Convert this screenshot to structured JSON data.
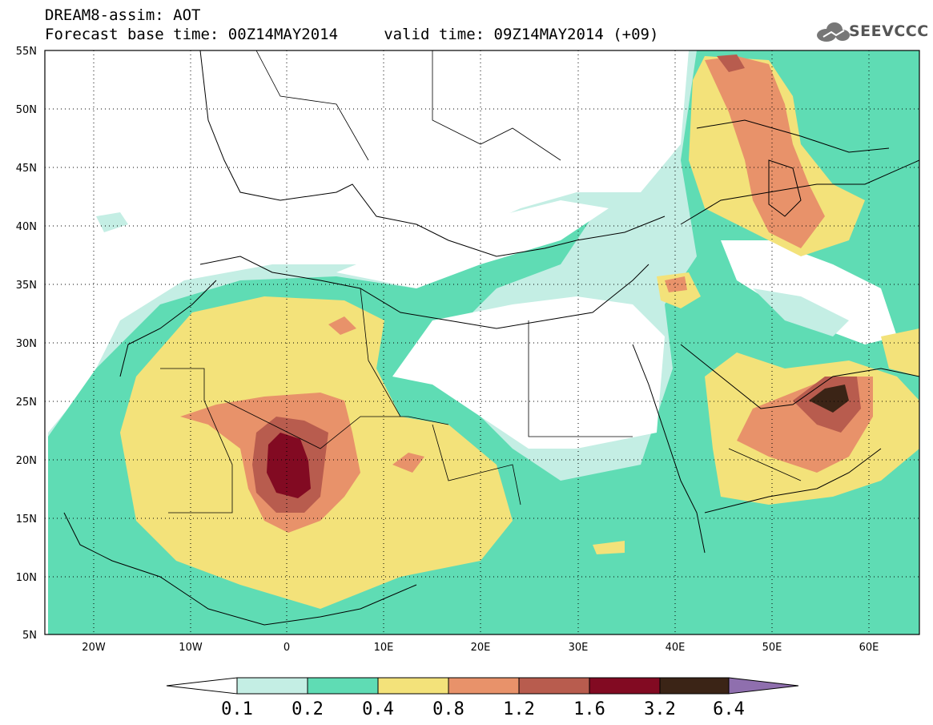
{
  "header": {
    "title_line1": "DREAM8-assim: AOT",
    "title_line2": "Forecast base time: 00Z14MAY2014     valid time: 09Z14MAY2014 (+09)",
    "logo_text": "SEEVCCC"
  },
  "map": {
    "projection": "lat-lon",
    "lon_range": [
      -25,
      65
    ],
    "lat_range": [
      5,
      55
    ],
    "lat_ticks": [
      "55N",
      "50N",
      "45N",
      "40N",
      "35N",
      "30N",
      "25N",
      "20N",
      "15N",
      "10N",
      "5N"
    ],
    "lon_ticks": [
      "20W",
      "10W",
      "0",
      "10E",
      "20E",
      "30E",
      "40E",
      "50E",
      "60E"
    ],
    "grid": "dotted",
    "field": "Aerosol Optical Thickness (dust)"
  },
  "colorbar": {
    "levels": [
      "0.1",
      "0.2",
      "0.4",
      "0.8",
      "1.2",
      "1.6",
      "3.2",
      "6.4"
    ],
    "colors": [
      "#ffffff",
      "#c4eee4",
      "#5fdcb4",
      "#f3e27a",
      "#e8926a",
      "#b85c4e",
      "#820a22",
      "#3b2416",
      "#8f6fae"
    ]
  }
}
